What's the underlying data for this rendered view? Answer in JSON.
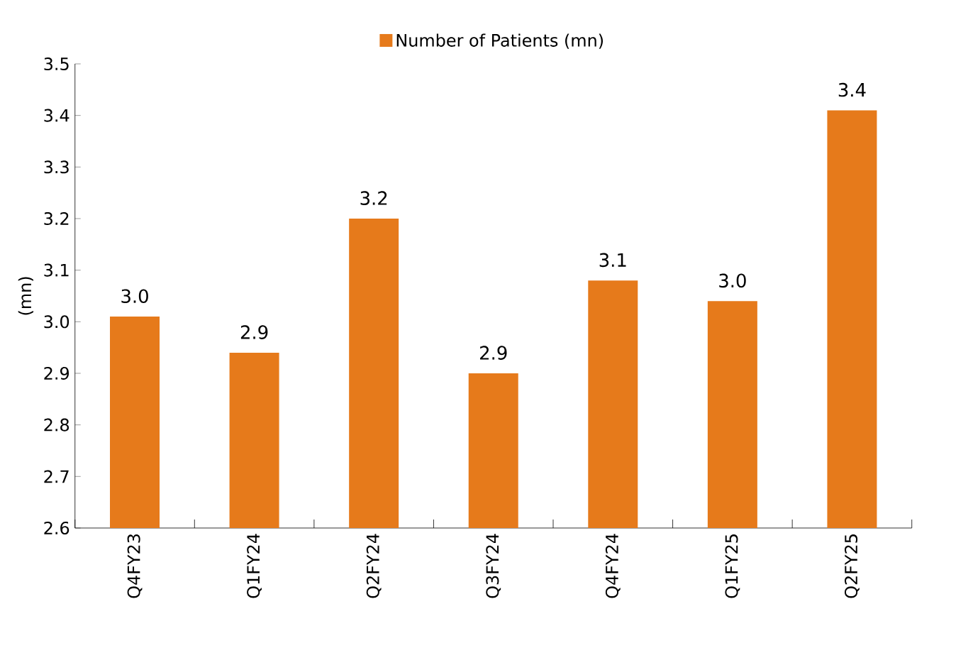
{
  "chart_data": {
    "type": "bar",
    "ylabel": "(mn)",
    "categories": [
      "Q4FY23",
      "Q1FY24",
      "Q2FY24",
      "Q3FY24",
      "Q4FY24",
      "Q1FY25",
      "Q2FY25"
    ],
    "series": [
      {
        "name": "Number of Patients (mn)",
        "color": "#e67a1b",
        "values": [
          3.01,
          2.94,
          3.2,
          2.9,
          3.08,
          3.04,
          3.41
        ],
        "value_labels": [
          "3.0",
          "2.9",
          "3.2",
          "2.9",
          "3.1",
          "3.0",
          "3.4"
        ]
      }
    ],
    "ylim": [
      2.6,
      3.5
    ],
    "yticks": [
      {
        "value": 2.6,
        "label": "2.6"
      },
      {
        "value": 2.7,
        "label": "2.7"
      },
      {
        "value": 2.8,
        "label": "2.8"
      },
      {
        "value": 2.9,
        "label": "2.9"
      },
      {
        "value": 3,
        "label": "3.0"
      },
      {
        "value": 3.1,
        "label": "3.1"
      },
      {
        "value": 3.2,
        "label": "3.2"
      },
      {
        "value": 3.3,
        "label": "3.3"
      },
      {
        "value": 3.4,
        "label": "3.4"
      },
      {
        "value": 3.5,
        "label": "3.5"
      }
    ],
    "legend": "top"
  }
}
